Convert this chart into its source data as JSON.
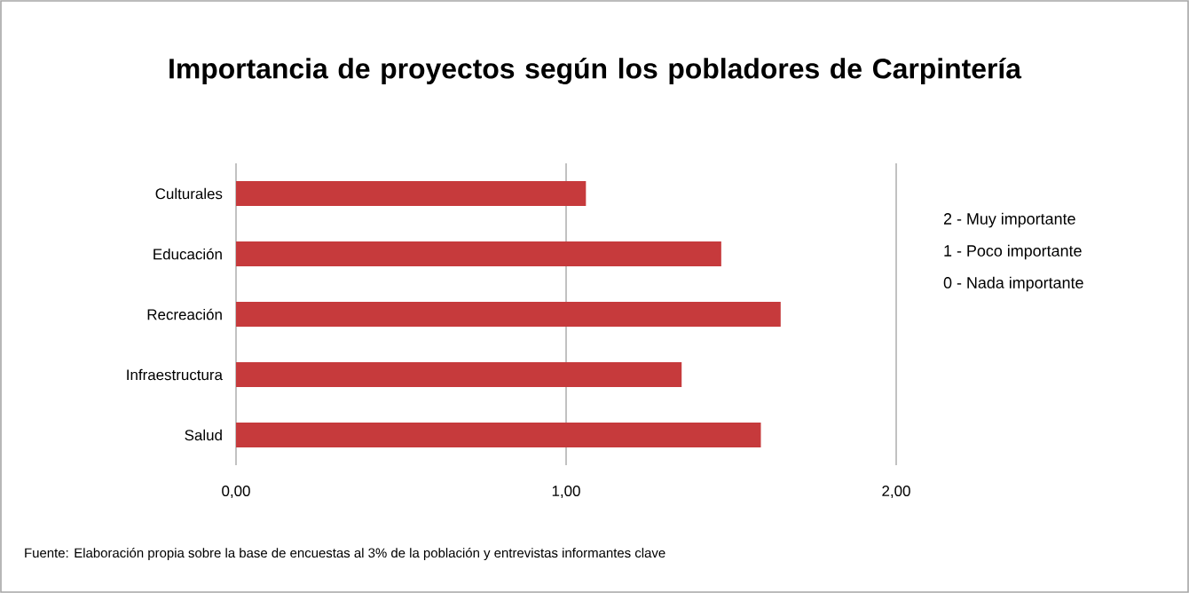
{
  "chart_data": {
    "type": "bar",
    "orientation": "horizontal",
    "title": "Importancia de proyectos según los pobladores de Carpintería",
    "categories": [
      "Culturales",
      "Educación",
      "Recreación",
      "Infraestructura",
      "Salud"
    ],
    "values": [
      1.06,
      1.47,
      1.65,
      1.35,
      1.59
    ],
    "color": "#c63a3c",
    "xlim": [
      0,
      2
    ],
    "xticks": [
      {
        "value": 0,
        "label": "0,00"
      },
      {
        "value": 1,
        "label": "1,00"
      },
      {
        "value": 2,
        "label": "2,00"
      }
    ],
    "grid": "x",
    "annotations": [
      "2 - Muy importante",
      "1 - Poco importante",
      "0 - Nada importante",
      "Fuente: Elaboración propia sobre la base de encuestas al 3% de la población y entrevistas informantes clave"
    ]
  }
}
